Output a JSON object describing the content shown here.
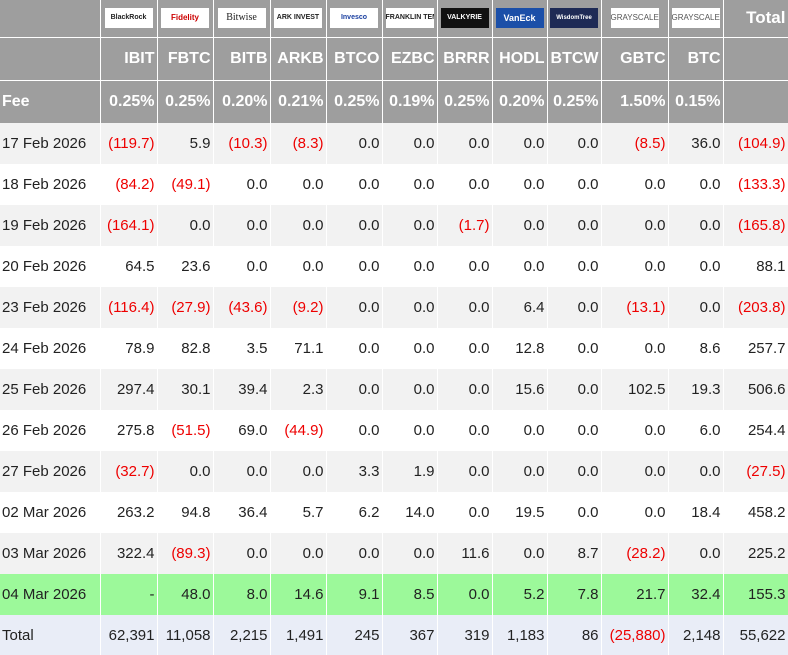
{
  "table": {
    "logos": [
      "BlackRock",
      "Fidelity",
      "Bitwise",
      "ARK INVEST",
      "Invesco",
      "FRANKLIN TEMPLETON",
      "VALKYRIE",
      "VanEck",
      "WisdomTree",
      "GRAYSCALE",
      "GRAYSCALE"
    ],
    "total_header": "Total",
    "tickers": [
      "IBIT",
      "FBTC",
      "BITB",
      "ARKB",
      "BTCO",
      "EZBC",
      "BRRR",
      "HODL",
      "BTCW",
      "GBTC",
      "BTC"
    ],
    "fee_label": "Fee",
    "fees": [
      "0.25%",
      "0.25%",
      "0.20%",
      "0.21%",
      "0.25%",
      "0.19%",
      "0.25%",
      "0.20%",
      "0.25%",
      "1.50%",
      "0.15%"
    ],
    "rows": [
      {
        "date": "17 Feb 2026",
        "cells": [
          "(119.7)",
          "5.9",
          "(10.3)",
          "(8.3)",
          "0.0",
          "0.0",
          "0.0",
          "0.0",
          "0.0",
          "(8.5)",
          "36.0",
          "(104.9)"
        ]
      },
      {
        "date": "18 Feb 2026",
        "cells": [
          "(84.2)",
          "(49.1)",
          "0.0",
          "0.0",
          "0.0",
          "0.0",
          "0.0",
          "0.0",
          "0.0",
          "0.0",
          "0.0",
          "(133.3)"
        ]
      },
      {
        "date": "19 Feb 2026",
        "cells": [
          "(164.1)",
          "0.0",
          "0.0",
          "0.0",
          "0.0",
          "0.0",
          "(1.7)",
          "0.0",
          "0.0",
          "0.0",
          "0.0",
          "(165.8)"
        ]
      },
      {
        "date": "20 Feb 2026",
        "cells": [
          "64.5",
          "23.6",
          "0.0",
          "0.0",
          "0.0",
          "0.0",
          "0.0",
          "0.0",
          "0.0",
          "0.0",
          "0.0",
          "88.1"
        ]
      },
      {
        "date": "23 Feb 2026",
        "cells": [
          "(116.4)",
          "(27.9)",
          "(43.6)",
          "(9.2)",
          "0.0",
          "0.0",
          "0.0",
          "6.4",
          "0.0",
          "(13.1)",
          "0.0",
          "(203.8)"
        ]
      },
      {
        "date": "24 Feb 2026",
        "cells": [
          "78.9",
          "82.8",
          "3.5",
          "71.1",
          "0.0",
          "0.0",
          "0.0",
          "12.8",
          "0.0",
          "0.0",
          "8.6",
          "257.7"
        ]
      },
      {
        "date": "25 Feb 2026",
        "cells": [
          "297.4",
          "30.1",
          "39.4",
          "2.3",
          "0.0",
          "0.0",
          "0.0",
          "15.6",
          "0.0",
          "102.5",
          "19.3",
          "506.6"
        ]
      },
      {
        "date": "26 Feb 2026",
        "cells": [
          "275.8",
          "(51.5)",
          "69.0",
          "(44.9)",
          "0.0",
          "0.0",
          "0.0",
          "0.0",
          "0.0",
          "0.0",
          "6.0",
          "254.4"
        ]
      },
      {
        "date": "27 Feb 2026",
        "cells": [
          "(32.7)",
          "0.0",
          "0.0",
          "0.0",
          "3.3",
          "1.9",
          "0.0",
          "0.0",
          "0.0",
          "0.0",
          "0.0",
          "(27.5)"
        ]
      },
      {
        "date": "02 Mar 2026",
        "cells": [
          "263.2",
          "94.8",
          "36.4",
          "5.7",
          "6.2",
          "14.0",
          "0.0",
          "19.5",
          "0.0",
          "0.0",
          "18.4",
          "458.2"
        ]
      },
      {
        "date": "03 Mar 2026",
        "cells": [
          "322.4",
          "(89.3)",
          "0.0",
          "0.0",
          "0.0",
          "0.0",
          "11.6",
          "0.0",
          "8.7",
          "(28.2)",
          "0.0",
          "225.2"
        ]
      },
      {
        "date": "04 Mar 2026",
        "cells": [
          "-",
          "48.0",
          "8.0",
          "14.6",
          "9.1",
          "8.5",
          "0.0",
          "5.2",
          "7.8",
          "21.7",
          "32.4",
          "155.3"
        ]
      }
    ],
    "total_label": "Total",
    "totals": [
      "62,391",
      "11,058",
      "2,215",
      "1,491",
      "245",
      "367",
      "319",
      "1,183",
      "86",
      "(25,880)",
      "2,148",
      "55,622"
    ]
  }
}
